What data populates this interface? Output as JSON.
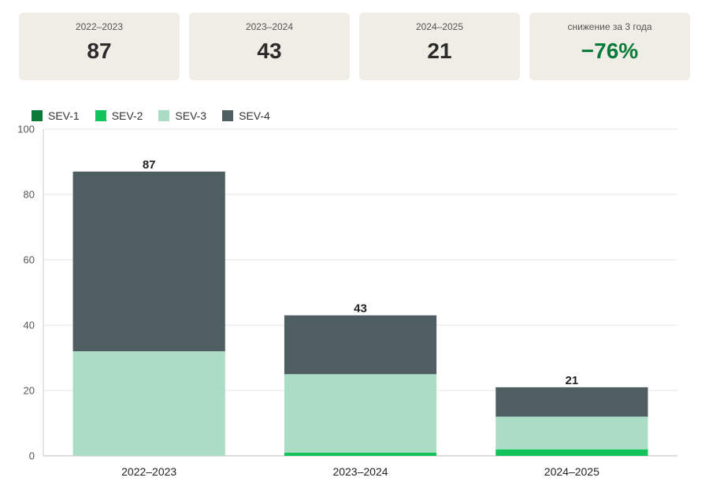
{
  "cards": [
    {
      "label": "2022–2023",
      "value": "87"
    },
    {
      "label": "2023–2024",
      "value": "43"
    },
    {
      "label": "2024–2025",
      "value": "21"
    },
    {
      "label": "снижение за 3 года",
      "value": "−76%"
    }
  ],
  "colors": {
    "SEV-1": "#0b7a3b",
    "SEV-2": "#12c25a",
    "SEV-3": "#abdcc5",
    "SEV-4": "#4f5e60",
    "accent": "#0a7a3a"
  },
  "chart_data": {
    "type": "bar",
    "stacked": true,
    "categories": [
      "2022–2023",
      "2023–2024",
      "2024–2025"
    ],
    "series": [
      {
        "name": "SEV-1",
        "values": [
          0,
          0,
          0
        ]
      },
      {
        "name": "SEV-2",
        "values": [
          0,
          1,
          2
        ]
      },
      {
        "name": "SEV-3",
        "values": [
          32,
          24,
          10
        ]
      },
      {
        "name": "SEV-4",
        "values": [
          55,
          18,
          9
        ]
      }
    ],
    "totals": [
      "87",
      "43",
      "21"
    ],
    "ylim": [
      0,
      100
    ],
    "yticks": [
      "0",
      "20",
      "40",
      "60",
      "80",
      "100"
    ],
    "grid": true,
    "legend": "top-left"
  }
}
